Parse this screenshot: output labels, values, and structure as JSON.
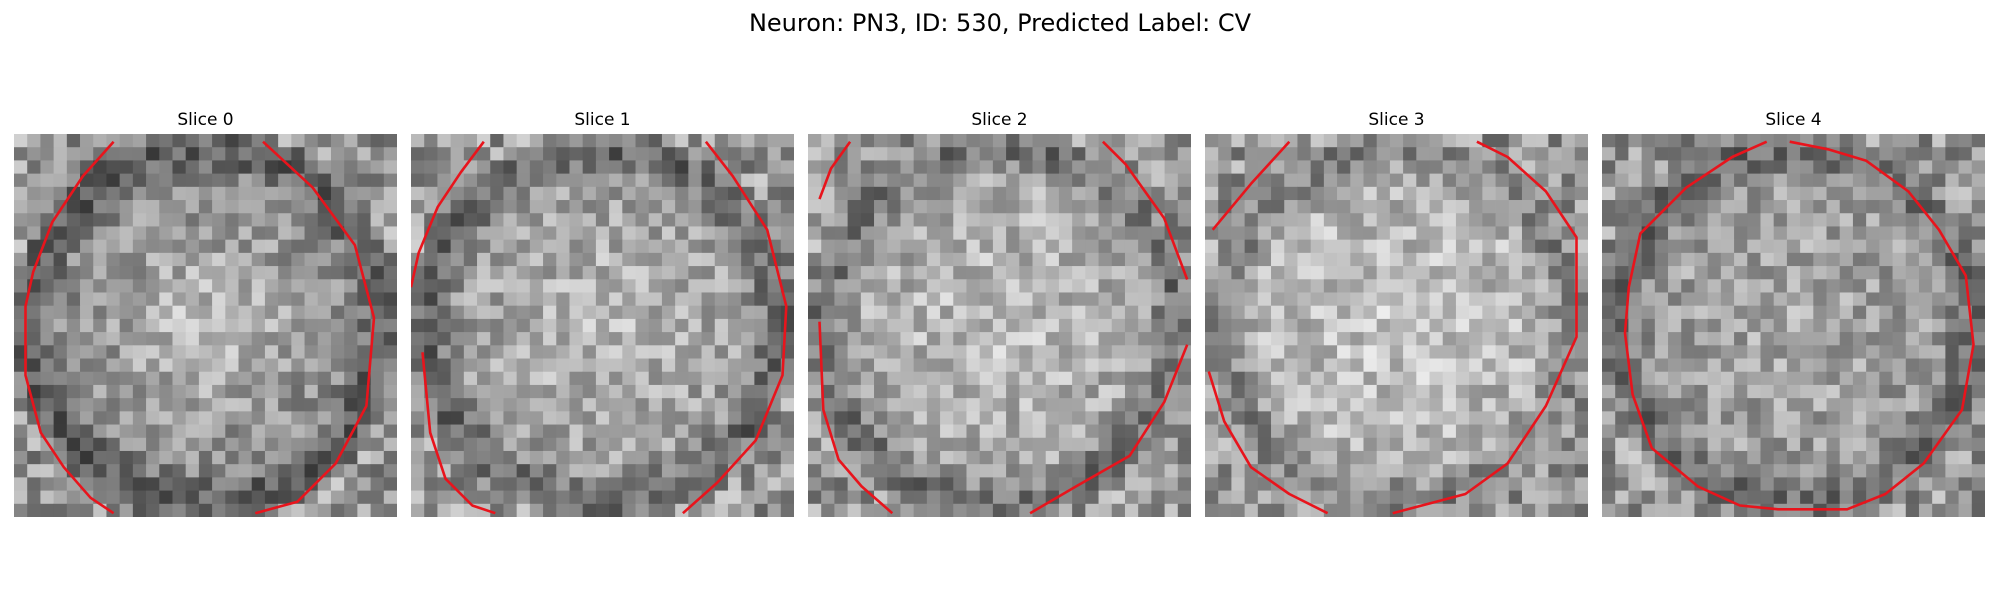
{
  "figure": {
    "title": "Neuron: PN3, ID: 530, Predicted Label: CV"
  },
  "contour_color": "#e8141c",
  "slices": [
    {
      "label": "Slice 0",
      "brightness": 0.58,
      "center_boost": 0.18,
      "ring_dark": 0.22,
      "contour": [
        [
          0.26,
          0.02
        ],
        [
          0.18,
          0.11
        ],
        [
          0.1,
          0.23
        ],
        [
          0.05,
          0.36
        ],
        [
          0.03,
          0.45
        ],
        [
          0.03,
          0.63
        ],
        [
          0.07,
          0.78
        ],
        [
          0.13,
          0.87
        ],
        [
          0.2,
          0.95
        ],
        [
          0.26,
          0.99
        ],
        null,
        [
          0.63,
          0.99
        ],
        [
          0.74,
          0.96
        ],
        [
          0.84,
          0.86
        ],
        [
          0.92,
          0.71
        ],
        [
          0.94,
          0.48
        ],
        [
          0.89,
          0.29
        ],
        [
          0.78,
          0.14
        ],
        [
          0.65,
          0.02
        ]
      ]
    },
    {
      "label": "Slice 1",
      "brightness": 0.64,
      "center_boost": 0.1,
      "ring_dark": 0.24,
      "contour": [
        [
          0.19,
          0.02
        ],
        [
          0.13,
          0.1
        ],
        [
          0.07,
          0.19
        ],
        [
          0.02,
          0.31
        ],
        [
          0.0,
          0.4
        ],
        null,
        [
          0.03,
          0.57
        ],
        [
          0.05,
          0.78
        ],
        [
          0.09,
          0.9
        ],
        [
          0.16,
          0.97
        ],
        [
          0.22,
          0.99
        ],
        null,
        [
          0.71,
          0.99
        ],
        [
          0.8,
          0.91
        ],
        [
          0.9,
          0.8
        ],
        [
          0.97,
          0.63
        ],
        [
          0.98,
          0.45
        ],
        [
          0.93,
          0.25
        ],
        [
          0.84,
          0.11
        ],
        [
          0.77,
          0.02
        ]
      ]
    },
    {
      "label": "Slice 2",
      "brightness": 0.68,
      "center_boost": 0.08,
      "ring_dark": 0.24,
      "contour": [
        [
          0.11,
          0.02
        ],
        [
          0.06,
          0.09
        ],
        [
          0.03,
          0.17
        ],
        null,
        [
          0.03,
          0.49
        ],
        [
          0.04,
          0.72
        ],
        [
          0.08,
          0.85
        ],
        [
          0.14,
          0.92
        ],
        [
          0.22,
          0.99
        ],
        null,
        [
          0.58,
          0.99
        ],
        [
          0.7,
          0.92
        ],
        [
          0.84,
          0.84
        ],
        [
          0.93,
          0.7
        ],
        [
          0.99,
          0.55
        ],
        null,
        [
          0.99,
          0.38
        ],
        [
          0.93,
          0.22
        ],
        [
          0.83,
          0.08
        ],
        [
          0.77,
          0.02
        ]
      ]
    },
    {
      "label": "Slice 3",
      "brightness": 0.72,
      "center_boost": 0.06,
      "ring_dark": 0.22,
      "contour": [
        [
          0.22,
          0.02
        ],
        [
          0.12,
          0.13
        ],
        [
          0.02,
          0.25
        ],
        null,
        [
          0.01,
          0.62
        ],
        [
          0.05,
          0.75
        ],
        [
          0.12,
          0.87
        ],
        [
          0.22,
          0.94
        ],
        [
          0.32,
          0.99
        ],
        null,
        [
          0.49,
          0.99
        ],
        [
          0.68,
          0.94
        ],
        [
          0.79,
          0.86
        ],
        [
          0.89,
          0.71
        ],
        [
          0.97,
          0.53
        ],
        [
          0.97,
          0.27
        ],
        [
          0.89,
          0.15
        ],
        [
          0.79,
          0.06
        ],
        [
          0.71,
          0.02
        ]
      ]
    },
    {
      "label": "Slice 4",
      "brightness": 0.62,
      "center_boost": 0.04,
      "ring_dark": 0.2,
      "contour": [
        [
          0.43,
          0.02
        ],
        [
          0.34,
          0.06
        ],
        [
          0.22,
          0.14
        ],
        [
          0.1,
          0.26
        ],
        [
          0.07,
          0.4
        ],
        [
          0.06,
          0.52
        ],
        [
          0.08,
          0.68
        ],
        [
          0.13,
          0.82
        ],
        [
          0.25,
          0.92
        ],
        [
          0.36,
          0.97
        ],
        [
          0.46,
          0.98
        ],
        [
          0.64,
          0.98
        ],
        [
          0.74,
          0.94
        ],
        [
          0.84,
          0.86
        ],
        [
          0.94,
          0.72
        ],
        [
          0.97,
          0.55
        ],
        [
          0.95,
          0.37
        ],
        [
          0.88,
          0.25
        ],
        [
          0.8,
          0.15
        ],
        [
          0.69,
          0.07
        ],
        [
          0.59,
          0.04
        ],
        [
          0.49,
          0.02
        ]
      ]
    }
  ]
}
